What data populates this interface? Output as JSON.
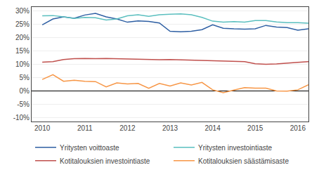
{
  "chart_data": {
    "type": "line",
    "x": [
      2010.0,
      2010.25,
      2010.5,
      2010.75,
      2011.0,
      2011.25,
      2011.5,
      2011.75,
      2012.0,
      2012.25,
      2012.5,
      2012.75,
      2013.0,
      2013.25,
      2013.5,
      2013.75,
      2014.0,
      2014.25,
      2014.5,
      2014.75,
      2015.0,
      2015.25,
      2015.5,
      2015.75,
      2016.0,
      2016.25
    ],
    "series": [
      {
        "name": "Yritysten voittoaste",
        "color": "#2E5FA3",
        "values": [
          0.248,
          0.27,
          0.278,
          0.273,
          0.285,
          0.291,
          0.278,
          0.27,
          0.258,
          0.263,
          0.261,
          0.255,
          0.224,
          0.222,
          0.224,
          0.23,
          0.248,
          0.235,
          0.233,
          0.232,
          0.233,
          0.246,
          0.24,
          0.238,
          0.228,
          0.233
        ]
      },
      {
        "name": "Yritysten investointiaste",
        "color": "#5BBFBF",
        "values": [
          0.282,
          0.283,
          0.278,
          0.272,
          0.276,
          0.275,
          0.266,
          0.27,
          0.282,
          0.286,
          0.28,
          0.286,
          0.288,
          0.289,
          0.286,
          0.276,
          0.262,
          0.258,
          0.26,
          0.258,
          0.264,
          0.264,
          0.259,
          0.256,
          0.256,
          0.254
        ]
      },
      {
        "name": "Kotitalouksien investointiaste",
        "color": "#C0504D",
        "values": [
          0.108,
          0.11,
          0.118,
          0.121,
          0.122,
          0.121,
          0.122,
          0.121,
          0.12,
          0.119,
          0.118,
          0.117,
          0.118,
          0.117,
          0.115,
          0.113,
          0.112,
          0.112,
          0.111,
          0.11,
          0.102,
          0.1,
          0.101,
          0.103,
          0.107,
          0.11
        ]
      },
      {
        "name": "Kotitalouksien säästämisaste",
        "color": "#F79646",
        "values": [
          0.043,
          0.061,
          0.036,
          0.04,
          0.036,
          0.035,
          0.015,
          0.03,
          0.026,
          0.028,
          0.01,
          0.028,
          0.018,
          0.03,
          0.022,
          0.032,
          0.004,
          -0.007,
          0.003,
          0.012,
          0.01,
          0.01,
          0.0,
          -0.001,
          0.004,
          0.023
        ]
      }
    ],
    "xlim": [
      2009.75,
      2016.25
    ],
    "xticks": [
      2010,
      2011,
      2012,
      2013,
      2014,
      2015,
      2016
    ],
    "ylim": [
      -0.115,
      0.315
    ],
    "yticks": [
      {
        "value": -0.1,
        "label": "-10%"
      },
      {
        "value": -0.05,
        "label": "-5%"
      },
      {
        "value": 0.0,
        "label": "0%"
      },
      {
        "value": 0.05,
        "label": "5%"
      },
      {
        "value": 0.1,
        "label": "10%"
      },
      {
        "value": 0.15,
        "label": "15%"
      },
      {
        "value": 0.2,
        "label": "20%"
      },
      {
        "value": 0.25,
        "label": "25%"
      },
      {
        "value": 0.3,
        "label": "30%"
      }
    ],
    "grid": "y",
    "legend": "bottom"
  }
}
